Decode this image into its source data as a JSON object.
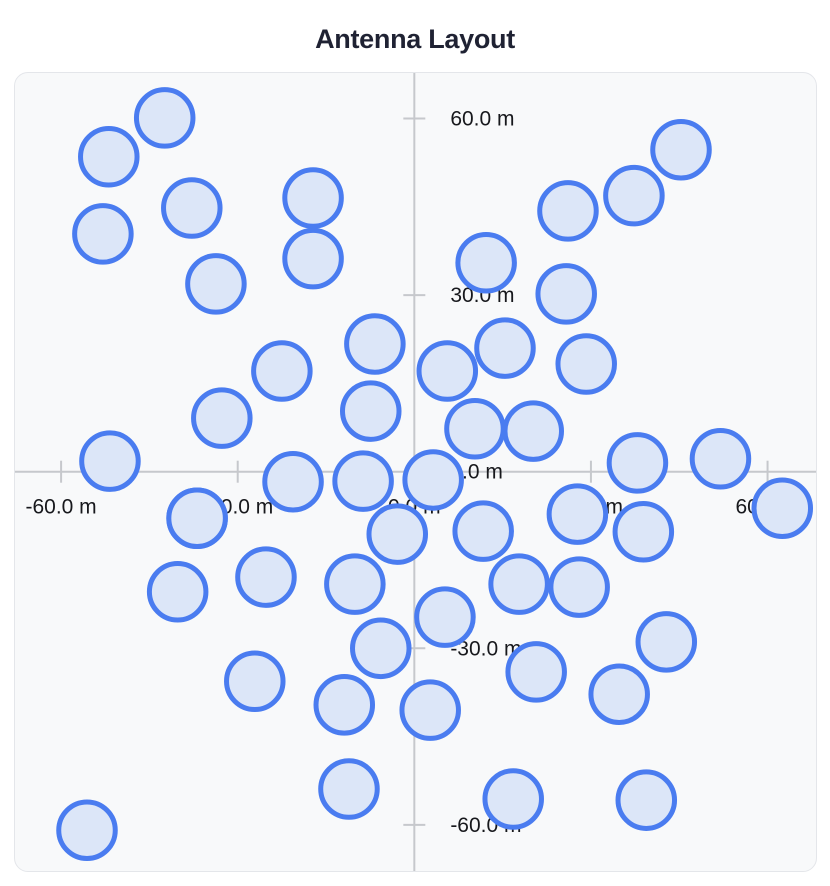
{
  "title": "Antenna Layout",
  "colors": {
    "page_bg": "#ffffff",
    "panel_bg": "#f8f9fa",
    "panel_border": "#e4e6ea",
    "axis": "#c6c8cc",
    "tick": "#c6c8cc",
    "tick_label": "#17181c",
    "title": "#1f2233",
    "marker_fill": "#dce6f8",
    "marker_stroke": "#4a7cf0"
  },
  "chart_data": {
    "type": "scatter",
    "title": "Antenna Layout",
    "xlabel": "",
    "ylabel": "",
    "unit": "m",
    "grid": false,
    "legend": null,
    "xlim": [
      -68.0,
      68.4
    ],
    "ylim": [
      -68.0,
      67.9
    ],
    "x_tick_values": [
      -60,
      -30,
      0,
      30,
      60
    ],
    "x_tick_labels": [
      "-60.0 m",
      "-30.0 m",
      "0.0 m",
      "30.0 m",
      "60.0 m"
    ],
    "y_tick_values": [
      60,
      30,
      0,
      -30,
      -60
    ],
    "y_tick_labels": [
      "60.0 m",
      "30.0 m",
      "0.0 m",
      "-30.0 m",
      "-60.0 m"
    ],
    "marker": {
      "shape": "circle",
      "radius_m": 4.8,
      "fill": "#dce6f8",
      "stroke": "#4a7cf0",
      "stroke_width_px": 5
    },
    "points_unit": "m",
    "points": [
      [
        -42.4,
        60.1
      ],
      [
        -51.9,
        53.5
      ],
      [
        -52.9,
        40.4
      ],
      [
        -37.8,
        44.8
      ],
      [
        -33.7,
        31.9
      ],
      [
        -17.2,
        46.5
      ],
      [
        -17.2,
        36.2
      ],
      [
        45.3,
        54.7
      ],
      [
        37.3,
        46.9
      ],
      [
        26.1,
        44.3
      ],
      [
        12.2,
        35.5
      ],
      [
        25.8,
        30.2
      ],
      [
        -22.5,
        17.1
      ],
      [
        -6.7,
        21.7
      ],
      [
        -7.4,
        10.3
      ],
      [
        -32.7,
        9.1
      ],
      [
        -51.7,
        1.8
      ],
      [
        5.6,
        17.1
      ],
      [
        15.4,
        21.0
      ],
      [
        29.2,
        18.3
      ],
      [
        10.3,
        7.3
      ],
      [
        20.2,
        6.9
      ],
      [
        37.9,
        1.5
      ],
      [
        52.0,
        2.2
      ],
      [
        62.5,
        -6.2
      ],
      [
        3.2,
        -1.4
      ],
      [
        -20.6,
        -1.7
      ],
      [
        -8.7,
        -1.6
      ],
      [
        -36.9,
        -7.9
      ],
      [
        -40.2,
        -20.4
      ],
      [
        -25.2,
        -17.9
      ],
      [
        -10.1,
        -19.1
      ],
      [
        -27.1,
        -35.6
      ],
      [
        -11.9,
        -39.6
      ],
      [
        2.7,
        -40.5
      ],
      [
        -11.1,
        -53.9
      ],
      [
        -55.6,
        -60.9
      ],
      [
        5.2,
        -24.7
      ],
      [
        -5.7,
        -30.0
      ],
      [
        17.8,
        -19.1
      ],
      [
        28.0,
        -19.6
      ],
      [
        20.7,
        -34.0
      ],
      [
        34.8,
        -37.8
      ],
      [
        42.8,
        -28.9
      ],
      [
        38.9,
        -10.2
      ],
      [
        11.7,
        -10.1
      ],
      [
        -2.9,
        -10.6
      ],
      [
        27.7,
        -7.2
      ],
      [
        16.8,
        -55.6
      ],
      [
        39.4,
        -55.8
      ],
      [
        -36.9,
        -7.9
      ]
    ]
  }
}
